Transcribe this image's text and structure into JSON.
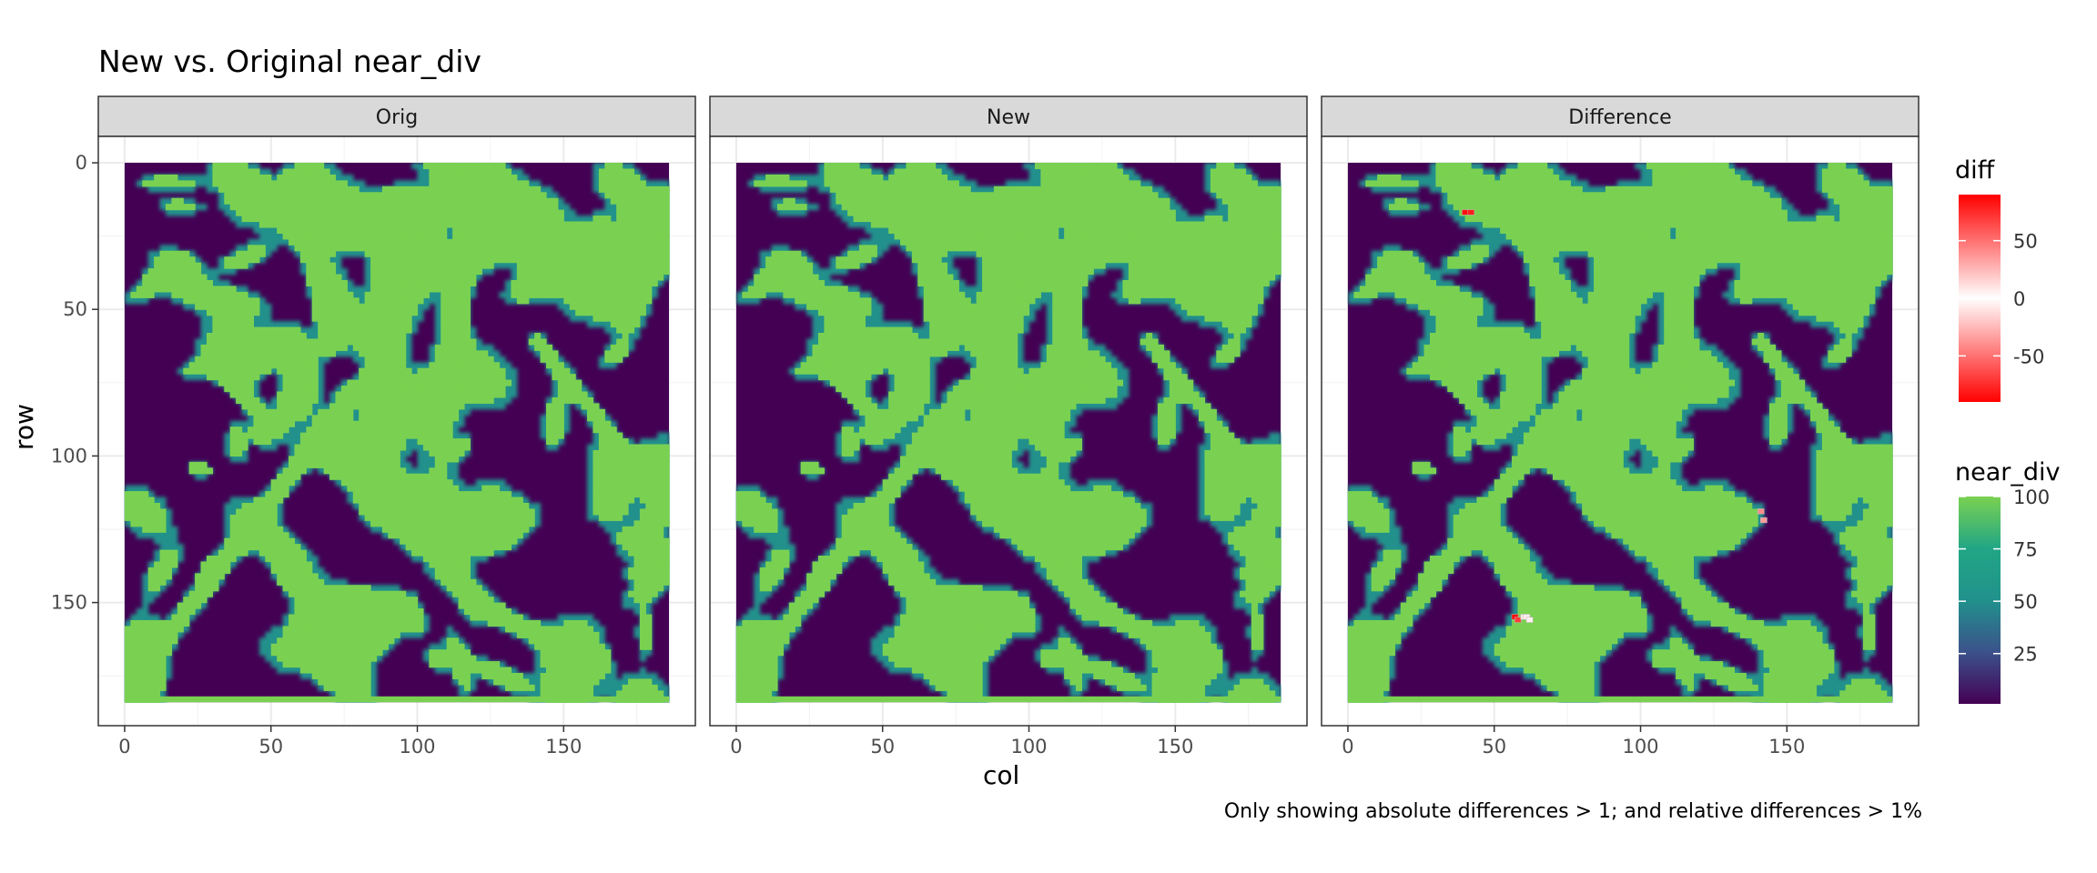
{
  "chart_data": {
    "type": "heatmap",
    "title": "New vs. Original near_div",
    "caption": "Only showing absolute differences > 1; and relative differences > 1%",
    "xlabel": "col",
    "ylabel": "row",
    "facets": [
      "Orig",
      "New",
      "Difference"
    ],
    "xlim": [
      -9,
      195
    ],
    "ylim": [
      192,
      -9
    ],
    "y_reversed": true,
    "grid_size": {
      "cols": 186,
      "rows": 184
    },
    "x_ticks": [
      0,
      50,
      100,
      150
    ],
    "x_tick_labels": [
      "0",
      "50",
      "100",
      "150"
    ],
    "y_ticks": [
      0,
      50,
      100,
      150
    ],
    "y_tick_labels": [
      "0",
      "50",
      "100",
      "150"
    ],
    "legends": {
      "diff": {
        "title": "diff",
        "range": [
          -90,
          90
        ],
        "breaks": [
          50,
          0,
          -50
        ],
        "break_labels": [
          "50",
          "0",
          "-50"
        ],
        "colors": {
          "high": "#ff0000",
          "mid": "#ffffff",
          "low": "#ff0000"
        }
      },
      "near_div": {
        "title": "near_div",
        "range": [
          1,
          100
        ],
        "breaks": [
          100,
          75,
          50,
          25
        ],
        "break_labels": [
          "100",
          "75",
          "50",
          "25"
        ],
        "palette": "viridis"
      }
    },
    "difference_cells": [
      {
        "col": 39,
        "row": 16,
        "diff": 85
      },
      {
        "col": 41,
        "row": 16,
        "diff": -80
      },
      {
        "col": 56,
        "row": 154,
        "diff": 88
      },
      {
        "col": 57,
        "row": 155,
        "diff": -70
      },
      {
        "col": 59,
        "row": 154,
        "diff": 8
      },
      {
        "col": 60,
        "row": 154,
        "diff": -6
      },
      {
        "col": 61,
        "row": 155,
        "diff": 5
      },
      {
        "col": 140,
        "row": 118,
        "diff": 40
      },
      {
        "col": 141,
        "row": 121,
        "diff": -35
      }
    ]
  }
}
